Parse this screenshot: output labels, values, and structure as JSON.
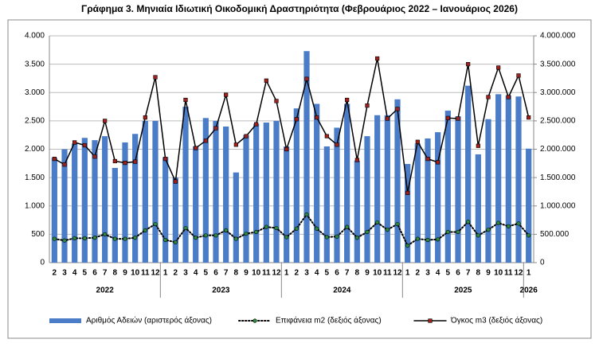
{
  "chart_data": {
    "type": "combo",
    "title": "Γράφημα 3. Μηνιαία Ιδιωτική Οικοδομική Δραστηριότητα (Φεβρουάριος 2022 – Ιανουάριος 2026)",
    "categories": [
      "2",
      "3",
      "4",
      "5",
      "6",
      "7",
      "8",
      "9",
      "10",
      "11",
      "12",
      "1",
      "2",
      "3",
      "4",
      "5",
      "6",
      "7",
      "8",
      "9",
      "10",
      "11",
      "12",
      "1",
      "2",
      "3",
      "4",
      "5",
      "6",
      "7",
      "8",
      "9",
      "10",
      "11",
      "12",
      "1",
      "2",
      "3",
      "4",
      "5",
      "6",
      "7",
      "8",
      "9",
      "10",
      "11",
      "12",
      "1"
    ],
    "years": [
      "2022",
      "2023",
      "2024",
      "2025",
      "2026"
    ],
    "ylim": [
      0,
      4000
    ],
    "yticks": [
      0,
      500,
      {
        "value": 1000,
        "label": "1.000"
      },
      {
        "value": 1500,
        "label": "1.500"
      },
      {
        "value": 2000,
        "label": "2.000"
      },
      {
        "value": 2500,
        "label": "2.500"
      },
      {
        "value": 3000,
        "label": "3.000"
      },
      {
        "value": 3500,
        "label": "3.500"
      },
      {
        "value": 4000,
        "label": "4.000"
      }
    ],
    "y2lim": [
      0,
      4000000
    ],
    "y2ticks": [
      0,
      {
        "value": 500000,
        "label": "500.000"
      },
      {
        "value": 1000000,
        "label": "1.000.000"
      },
      {
        "value": 1500000,
        "label": "1.500.000"
      },
      {
        "value": 2000000,
        "label": "2.000.000"
      },
      {
        "value": 2500000,
        "label": "2.500.000"
      },
      {
        "value": 3000000,
        "label": "3.000.000"
      },
      {
        "value": 3500000,
        "label": "3.500.000"
      },
      {
        "value": 4000000,
        "label": "4.000.000"
      }
    ],
    "grid": true,
    "legend": "bottom",
    "series": [
      {
        "name": "Αριθμός Αδειών (αριστερός άξονας)",
        "type": "bar",
        "color": "#4a7cc7",
        "values": [
          1850,
          2000,
          2100,
          2200,
          2160,
          2230,
          1670,
          2120,
          2270,
          2500,
          2500,
          1860,
          1500,
          2750,
          2050,
          2550,
          2500,
          2400,
          1590,
          2250,
          2450,
          2470,
          2500,
          2050,
          2720,
          3730,
          2800,
          2050,
          2380,
          2800,
          1800,
          2230,
          2600,
          2600,
          2880,
          1740,
          2100,
          2190,
          2300,
          2680,
          2580,
          3120,
          1910,
          2530,
          2970,
          2950,
          2930,
          2010
        ]
      },
      {
        "name": "Επιφάνεια m2 (δεξιός άξονας)",
        "type": "line",
        "axis": "y2",
        "color": "#000000",
        "dash": "dotted",
        "marker": "circle",
        "marker_color": "#2e8b3e",
        "values": [
          420000,
          390000,
          430000,
          430000,
          440000,
          500000,
          420000,
          420000,
          440000,
          570000,
          680000,
          400000,
          360000,
          610000,
          440000,
          480000,
          480000,
          570000,
          420000,
          510000,
          540000,
          630000,
          610000,
          450000,
          600000,
          850000,
          600000,
          450000,
          460000,
          630000,
          440000,
          540000,
          710000,
          580000,
          680000,
          300000,
          420000,
          400000,
          410000,
          540000,
          540000,
          720000,
          480000,
          580000,
          700000,
          640000,
          690000,
          480000
        ]
      },
      {
        "name": "Όγκος m3 (δεξιός άξονας)",
        "type": "line",
        "axis": "y2",
        "color": "#000000",
        "dash": "solid",
        "marker": "square",
        "marker_color": "#a0201c",
        "values": [
          1830000,
          1730000,
          2120000,
          2070000,
          1870000,
          2500000,
          1790000,
          1760000,
          1780000,
          2560000,
          3270000,
          1830000,
          1430000,
          2870000,
          2020000,
          2150000,
          2370000,
          2960000,
          2080000,
          2230000,
          2440000,
          3210000,
          2850000,
          2000000,
          2530000,
          3240000,
          2560000,
          2230000,
          2080000,
          2870000,
          1810000,
          2770000,
          3600000,
          2540000,
          2710000,
          1230000,
          2130000,
          1830000,
          1770000,
          2550000,
          2540000,
          3500000,
          2060000,
          2920000,
          3440000,
          2920000,
          3300000,
          2560000
        ]
      }
    ]
  }
}
